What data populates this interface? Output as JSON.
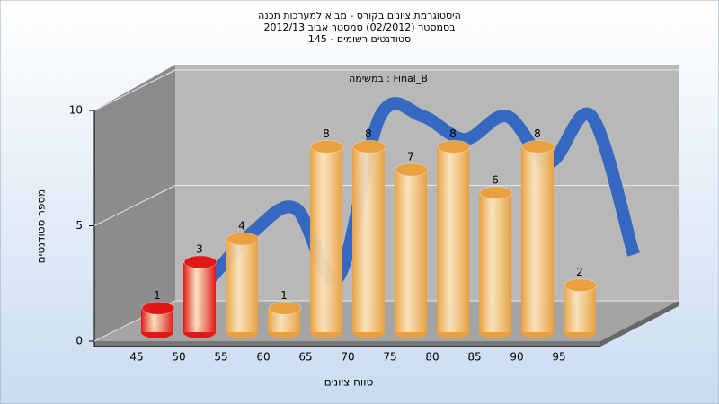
{
  "chart_data": {
    "type": "bar",
    "title": [
      "היסטוגרמת ציונים בקורס - מבוא למערכות תכנה",
      "בסמסטר (02/2012) סמסטר אביב 2012/13",
      "סטודנטים רשומים - 145"
    ],
    "annotation": "במשימה : Final_B",
    "x_label": "טווח ציונים",
    "y_label": "מספר סטודנטים",
    "categories": [
      "45",
      "50",
      "55",
      "60",
      "65",
      "70",
      "75",
      "80",
      "85",
      "90",
      "95"
    ],
    "values": [
      1,
      3,
      4,
      1,
      8,
      8,
      7,
      8,
      6,
      8,
      2
    ],
    "colors": [
      "#e01818",
      "#e01818",
      "#e8a040",
      "#e8a040",
      "#e8a040",
      "#e8a040",
      "#e8a040",
      "#e8a040",
      "#e8a040",
      "#e8a040",
      "#e8a040"
    ],
    "line_color": "#3568c0",
    "ylim": [
      0,
      10
    ],
    "yticks": [
      0,
      5,
      10
    ],
    "grid": true
  }
}
